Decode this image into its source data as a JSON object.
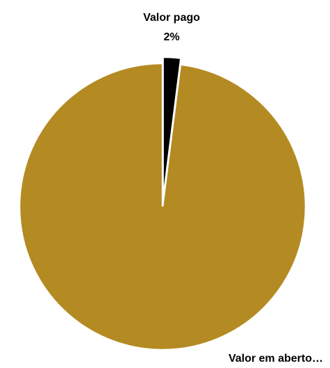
{
  "chart_data": {
    "type": "pie",
    "slices": [
      {
        "label": "Valor pago",
        "value": 2,
        "value_label": "2%",
        "color": "#000000"
      },
      {
        "label": "Valor em aberto…",
        "value": 98,
        "value_label": "",
        "color": "#B48A22"
      }
    ],
    "exploded": true,
    "slice_border_color": "#ffffff",
    "legend": "none"
  }
}
